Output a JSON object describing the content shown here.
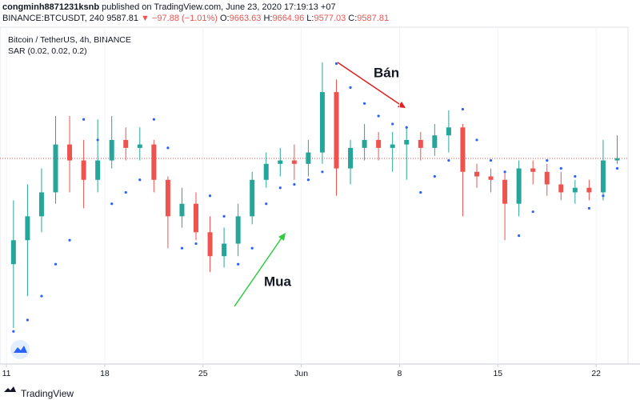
{
  "header": {
    "author": "congminh8871231ksnb",
    "published": "published on TradingView.com, June 23, 2020 17:19:13 +07",
    "symbol": "BINANCE:BTCUSDT, 240",
    "last": "9587.81",
    "change": "▼ −97.88 (−1.01%)",
    "o_label": "O:",
    "o": "9663.63",
    "h_label": "H:",
    "h": "9664.96",
    "l_label": "L:",
    "l": "9577.03",
    "c_label": "C:",
    "c": "9587.81"
  },
  "footer": {
    "brand": "TradingView"
  },
  "chart_data": {
    "type": "candlestick",
    "title": "Bitcoin / TetherUS, 4h, BINANCE",
    "indicator": "SAR (0.02, 0.02, 0.2)",
    "annotations": [
      {
        "text": "Bán"
      },
      {
        "text": "Mua"
      }
    ],
    "up_color": "#26a69a",
    "down_color": "#ef5350",
    "sar_color": "#2962ff",
    "last_price": 9587.81,
    "last_price_color": "#ef5350",
    "x": [
      0.5,
      1.5,
      2.5,
      3.5,
      4.5,
      5.5,
      6.5,
      7.5,
      8.5,
      9.5,
      10.5,
      11.5,
      12.5,
      13.5,
      14.5,
      15.5,
      16.5,
      17.5,
      18.5,
      19.5,
      20.5,
      21.5,
      22.5,
      23.5,
      24.5,
      25.5,
      26.5,
      27.5,
      28.5,
      29.5,
      30.5,
      31.5,
      32.5,
      33.5,
      34.5,
      35.5,
      36.5,
      37.5,
      38.5,
      39.5,
      40.5,
      41.5,
      42.5,
      43.5
    ],
    "open": [
      8660,
      8870,
      9080,
      9290,
      9710,
      9570,
      9400,
      9570,
      9750,
      9680,
      9710,
      9400,
      9080,
      9190,
      8940,
      8730,
      8840,
      9080,
      9400,
      9540,
      9570,
      9540,
      9640,
      10170,
      9500,
      9680,
      9750,
      9680,
      9710,
      9750,
      9680,
      9790,
      9860,
      9470,
      9430,
      9400,
      9190,
      9500,
      9470,
      9360,
      9290,
      9330,
      9290,
      9570
    ],
    "high": [
      9220,
      9360,
      9500,
      9960,
      9960,
      9750,
      9930,
      9960,
      9860,
      9860,
      9750,
      9430,
      9330,
      9290,
      9080,
      8980,
      9190,
      9470,
      9640,
      9680,
      9710,
      9750,
      10430,
      10280,
      9750,
      9890,
      9820,
      9820,
      9860,
      9820,
      9890,
      10010,
      9890,
      9540,
      9500,
      9470,
      9570,
      9570,
      9540,
      9470,
      9400,
      9400,
      9750,
      9790
    ],
    "low": [
      8100,
      8380,
      8940,
      9190,
      9290,
      9150,
      9290,
      9500,
      9570,
      9570,
      9290,
      8800,
      8980,
      8870,
      8590,
      8630,
      8730,
      9010,
      9330,
      9430,
      9400,
      9430,
      9540,
      9260,
      9360,
      9570,
      9570,
      9470,
      9400,
      9570,
      9610,
      9640,
      9080,
      9330,
      9290,
      8870,
      9080,
      9360,
      9260,
      9220,
      9190,
      9220,
      9220,
      9540
    ],
    "close": [
      8870,
      9080,
      9290,
      9710,
      9570,
      9400,
      9570,
      9750,
      9680,
      9710,
      9400,
      9080,
      9190,
      8940,
      8730,
      8840,
      9080,
      9400,
      9540,
      9570,
      9540,
      9640,
      10170,
      9500,
      9680,
      9750,
      9680,
      9710,
      9750,
      9680,
      9790,
      9860,
      9470,
      9430,
      9400,
      9190,
      9500,
      9470,
      9360,
      9290,
      9330,
      9290,
      9570,
      9590
    ],
    "sar": [
      8070,
      8170,
      8380,
      8660,
      8870,
      9930,
      9750,
      9190,
      9290,
      9400,
      9930,
      9680,
      8800,
      8840,
      9260,
      9080,
      8660,
      8800,
      9190,
      9330,
      9360,
      9400,
      9470,
      10420,
      10210,
      10070,
      9960,
      9890,
      9860,
      9290,
      9430,
      9570,
      10020,
      9750,
      9570,
      9470,
      8910,
      9120,
      9570,
      9500,
      9430,
      9150,
      9260,
      9500
    ],
    "xlim": [
      -0.46,
      44.27
    ],
    "ylim": [
      7784,
      10697
    ],
    "xticks": [
      {
        "value": 0,
        "label": "11"
      },
      {
        "value": 7,
        "label": "18"
      },
      {
        "value": 14,
        "label": "25"
      },
      {
        "value": 21,
        "label": "Jun"
      },
      {
        "value": 28,
        "label": "8"
      },
      {
        "value": 35,
        "label": "15"
      },
      {
        "value": 42,
        "label": "22"
      }
    ]
  }
}
